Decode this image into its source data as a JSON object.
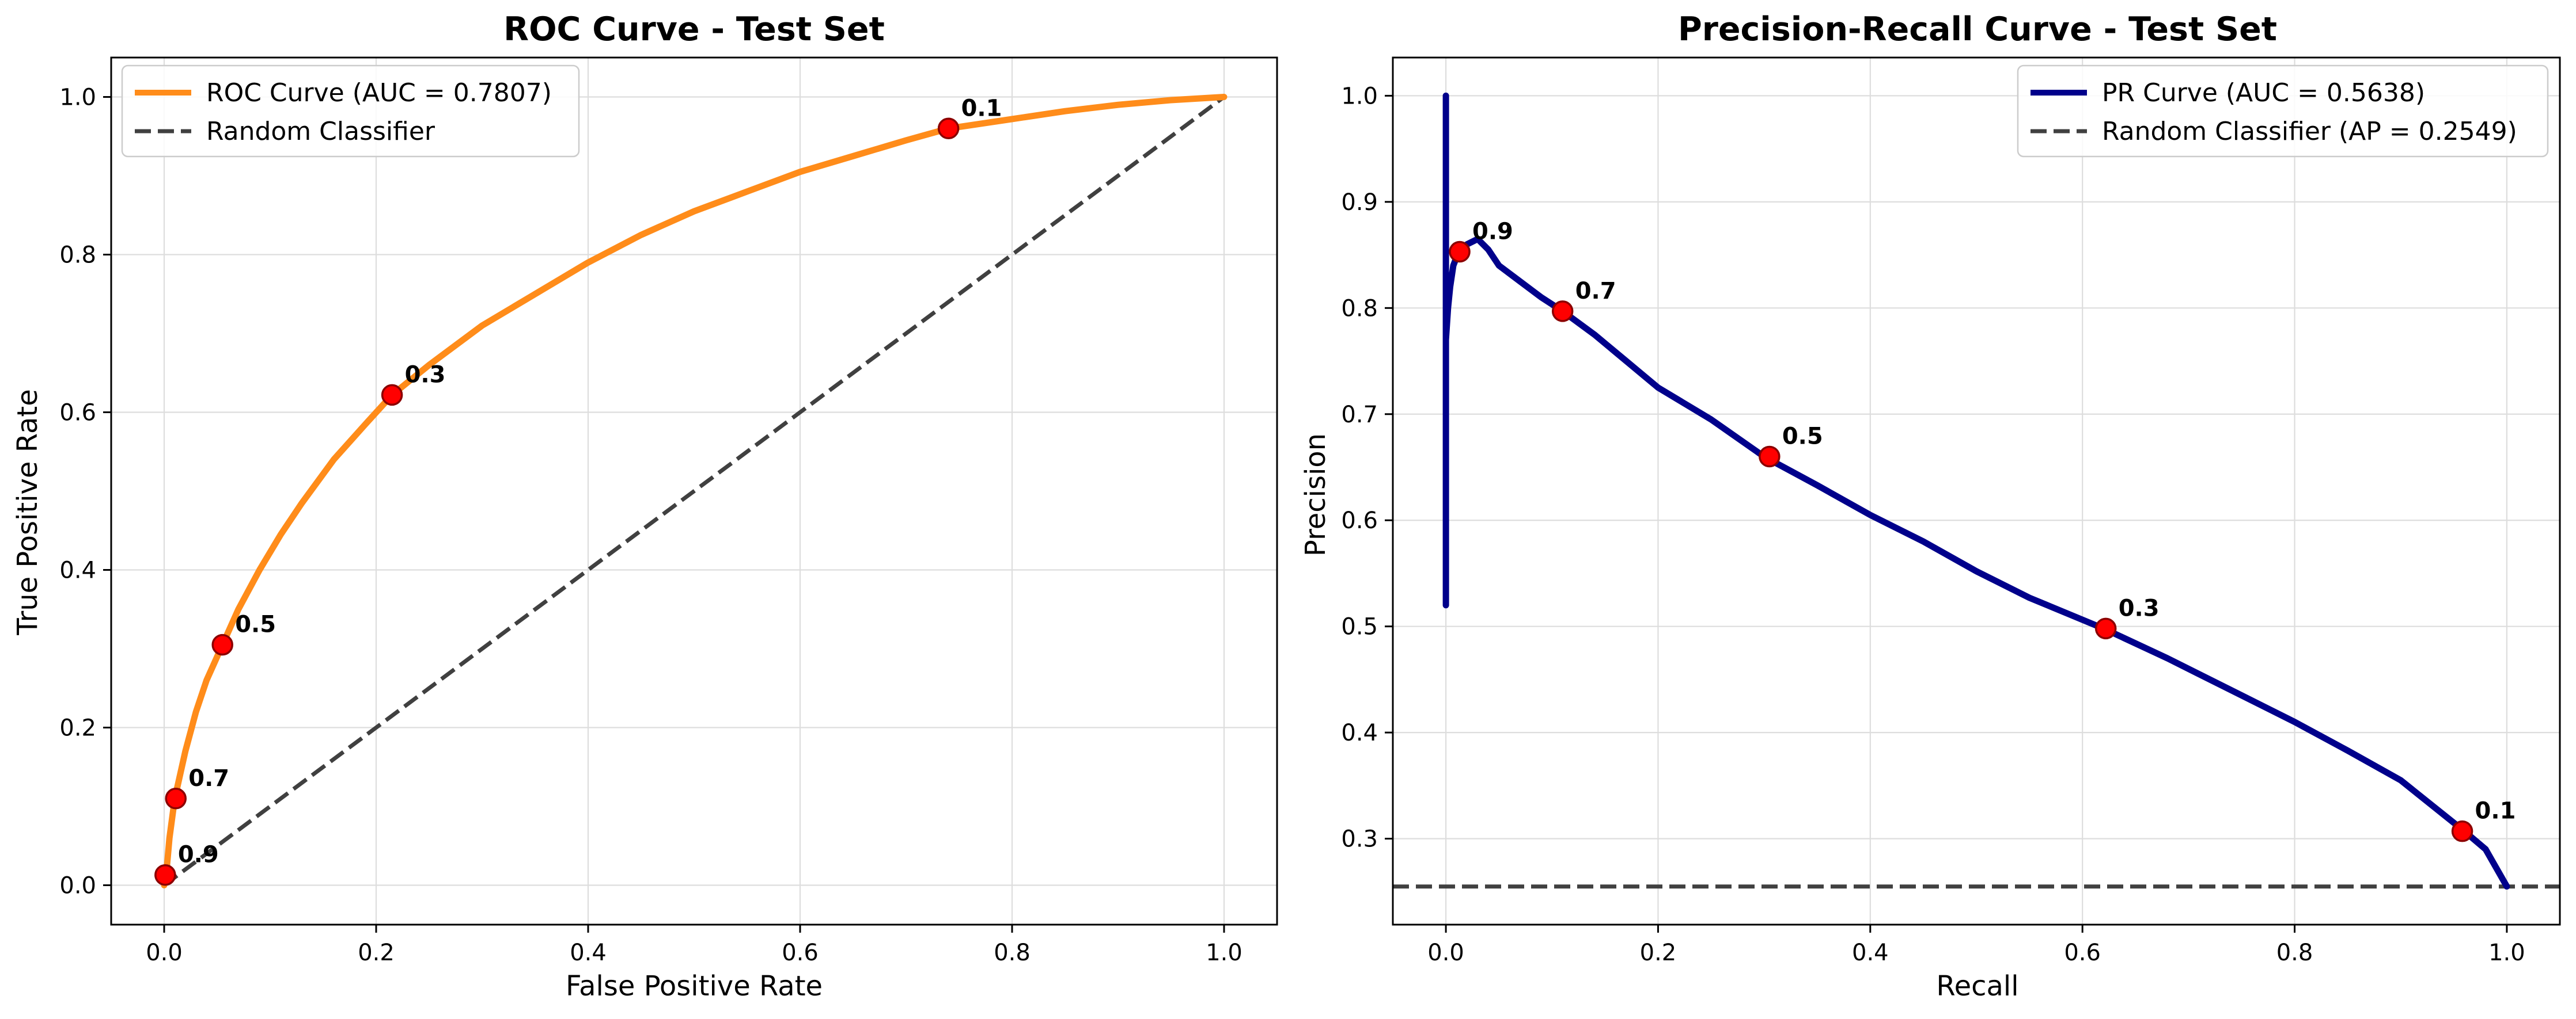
{
  "chart_data": [
    {
      "type": "line",
      "title": "ROC Curve - Test Set",
      "xlabel": "False Positive Rate",
      "ylabel": "True Positive Rate",
      "xlim": [
        -0.05,
        1.05
      ],
      "ylim": [
        -0.05,
        1.05
      ],
      "xticks": [
        0.0,
        0.2,
        0.4,
        0.6,
        0.8,
        1.0
      ],
      "yticks": [
        0.0,
        0.2,
        0.4,
        0.6,
        0.8,
        1.0
      ],
      "xtick_labels": [
        "0.0",
        "0.2",
        "0.4",
        "0.6",
        "0.8",
        "1.0"
      ],
      "ytick_labels": [
        "0.0",
        "0.2",
        "0.4",
        "0.6",
        "0.8",
        "1.0"
      ],
      "grid": true,
      "legend_position": "upper-left",
      "series": [
        {
          "name": "ROC Curve (AUC = 0.7807)",
          "color": "#ff8c1a",
          "style": "solid",
          "x": [
            0.0,
            0.002,
            0.005,
            0.01,
            0.02,
            0.03,
            0.04,
            0.055,
            0.07,
            0.09,
            0.11,
            0.13,
            0.16,
            0.19,
            0.215,
            0.25,
            0.3,
            0.35,
            0.4,
            0.45,
            0.5,
            0.55,
            0.6,
            0.65,
            0.7,
            0.74,
            0.8,
            0.85,
            0.9,
            0.95,
            1.0
          ],
          "y": [
            0.0,
            0.015,
            0.06,
            0.11,
            0.17,
            0.22,
            0.26,
            0.305,
            0.35,
            0.4,
            0.445,
            0.485,
            0.54,
            0.585,
            0.622,
            0.66,
            0.71,
            0.75,
            0.79,
            0.825,
            0.855,
            0.88,
            0.905,
            0.925,
            0.945,
            0.96,
            0.972,
            0.982,
            0.99,
            0.996,
            1.0
          ]
        },
        {
          "name": "Random Classifier",
          "color": "#404040",
          "style": "dashed",
          "x": [
            0.0,
            1.0
          ],
          "y": [
            0.0,
            1.0
          ]
        }
      ],
      "threshold_points": [
        {
          "label": "0.9",
          "x": 0.001,
          "y": 0.013
        },
        {
          "label": "0.7",
          "x": 0.011,
          "y": 0.11
        },
        {
          "label": "0.5",
          "x": 0.055,
          "y": 0.305
        },
        {
          "label": "0.3",
          "x": 0.215,
          "y": 0.622
        },
        {
          "label": "0.1",
          "x": 0.74,
          "y": 0.96
        }
      ]
    },
    {
      "type": "line",
      "title": "Precision-Recall Curve - Test Set",
      "xlabel": "Recall",
      "ylabel": "Precision",
      "xlim": [
        -0.05,
        1.05
      ],
      "ylim": [
        0.219,
        1.036
      ],
      "xticks": [
        0.0,
        0.2,
        0.4,
        0.6,
        0.8,
        1.0
      ],
      "yticks": [
        0.3,
        0.4,
        0.5,
        0.6,
        0.7,
        0.8,
        0.9,
        1.0
      ],
      "xtick_labels": [
        "0.0",
        "0.2",
        "0.4",
        "0.6",
        "0.8",
        "1.0"
      ],
      "ytick_labels": [
        "0.3",
        "0.4",
        "0.5",
        "0.6",
        "0.7",
        "0.8",
        "0.9",
        "1.0"
      ],
      "grid": true,
      "legend_position": "upper-right",
      "series": [
        {
          "name": "PR Curve (AUC = 0.5638)",
          "color": "#00008b",
          "style": "solid",
          "x": [
            0.0,
            0.0,
            0.0,
            0.002,
            0.004,
            0.007,
            0.012,
            0.02,
            0.03,
            0.04,
            0.05,
            0.07,
            0.09,
            0.11,
            0.14,
            0.17,
            0.2,
            0.25,
            0.3,
            0.35,
            0.4,
            0.45,
            0.5,
            0.55,
            0.62,
            0.68,
            0.75,
            0.8,
            0.85,
            0.9,
            0.96,
            0.98,
            1.0
          ],
          "y": [
            1.0,
            0.52,
            0.77,
            0.8,
            0.82,
            0.84,
            0.853,
            0.86,
            0.865,
            0.855,
            0.84,
            0.825,
            0.81,
            0.797,
            0.775,
            0.75,
            0.725,
            0.695,
            0.66,
            0.633,
            0.605,
            0.58,
            0.552,
            0.527,
            0.498,
            0.47,
            0.435,
            0.41,
            0.383,
            0.355,
            0.307,
            0.29,
            0.255
          ]
        },
        {
          "name": "Random Classifier (AP = 0.2549)",
          "color": "#404040",
          "style": "dashed",
          "x": [
            -0.05,
            1.05
          ],
          "y": [
            0.2549,
            0.2549
          ]
        }
      ],
      "threshold_points": [
        {
          "label": "0.9",
          "x": 0.013,
          "y": 0.853
        },
        {
          "label": "0.7",
          "x": 0.11,
          "y": 0.797
        },
        {
          "label": "0.5",
          "x": 0.305,
          "y": 0.66
        },
        {
          "label": "0.3",
          "x": 0.622,
          "y": 0.498
        },
        {
          "label": "0.1",
          "x": 0.958,
          "y": 0.307
        }
      ]
    }
  ]
}
